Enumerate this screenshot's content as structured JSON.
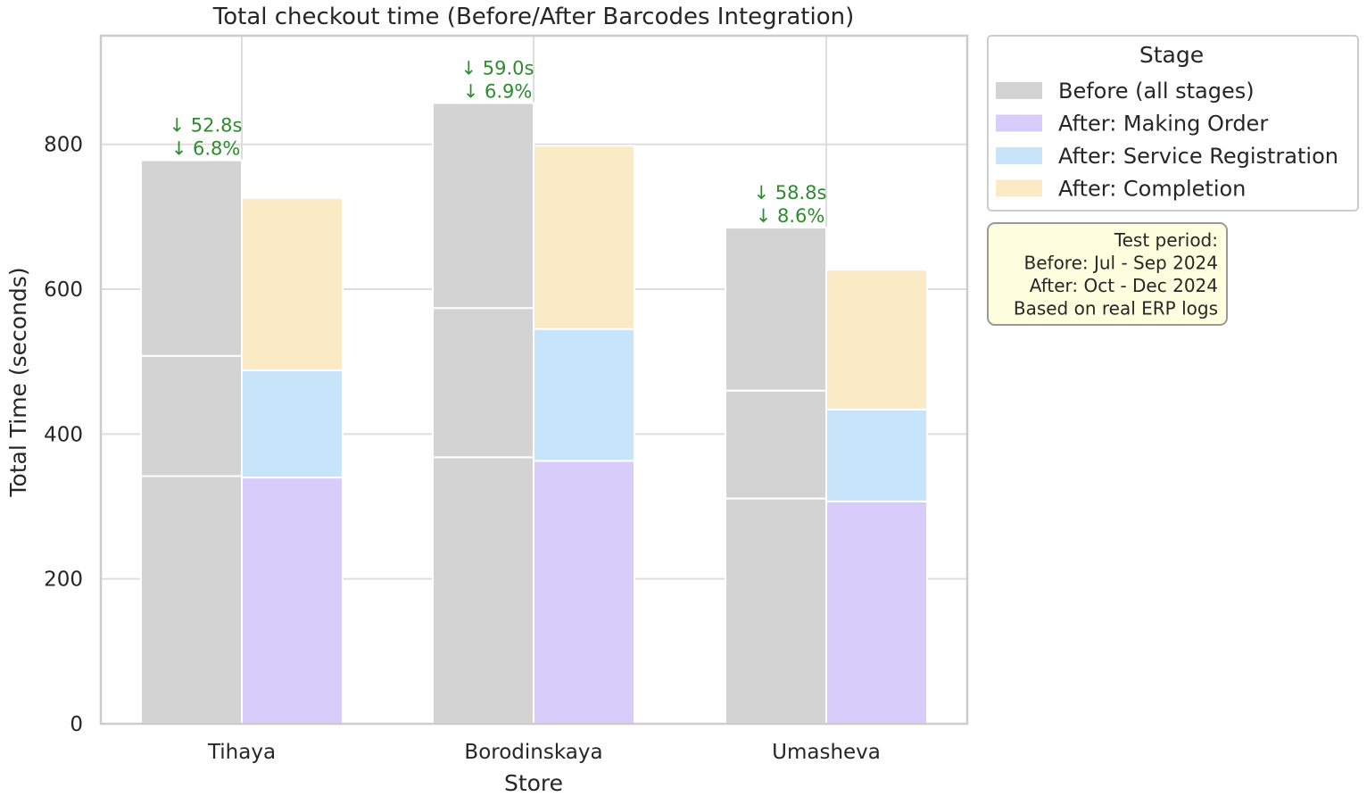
{
  "chart_data": {
    "type": "bar",
    "title": "Total checkout time (Before/After Barcodes Integration)",
    "xlabel": "Store",
    "ylabel": "Total Time (seconds)",
    "ylim": [
      0,
      950
    ],
    "yticks": [
      0,
      200,
      400,
      600,
      800
    ],
    "grid": true,
    "categories": [
      "Tihaya",
      "Borodinskaya",
      "Umasheva"
    ],
    "before": {
      "name": "Before (all stages)",
      "color": "#d3d3d3",
      "segments": [
        [
          342,
          166,
          270
        ],
        [
          368,
          206,
          283
        ],
        [
          311,
          149,
          225
        ]
      ]
    },
    "after": {
      "series": [
        {
          "name": "After: Making Order",
          "color": "#d8ccfa",
          "values": [
            340,
            363,
            307
          ]
        },
        {
          "name": "After: Service Registration",
          "color": "#c8e4fa",
          "values": [
            148,
            182,
            127
          ]
        },
        {
          "name": "After: Completion",
          "color": "#faebc6",
          "values": [
            238,
            253,
            193
          ]
        }
      ]
    },
    "annotations": [
      {
        "line1": "↓ 52.8s",
        "line2": "↓ 6.8%"
      },
      {
        "line1": "↓ 59.0s",
        "line2": "↓ 6.9%"
      },
      {
        "line1": "↓ 58.8s",
        "line2": "↓ 8.6%"
      }
    ],
    "annotation_color": "#2e8b2e",
    "legend": {
      "title": "Stage",
      "placement": "outside-top-right",
      "items": [
        {
          "label": "Before (all stages)",
          "color": "#d3d3d3"
        },
        {
          "label": "After: Making Order",
          "color": "#d8ccfa"
        },
        {
          "label": "After: Service Registration",
          "color": "#c8e4fa"
        },
        {
          "label": "After: Completion",
          "color": "#faebc6"
        }
      ]
    },
    "note": {
      "lines": [
        "Test period:",
        "Before: Jul - Sep 2024",
        "After: Oct - Dec 2024",
        "Based on real ERP logs"
      ],
      "background": "#ffffe0"
    }
  }
}
